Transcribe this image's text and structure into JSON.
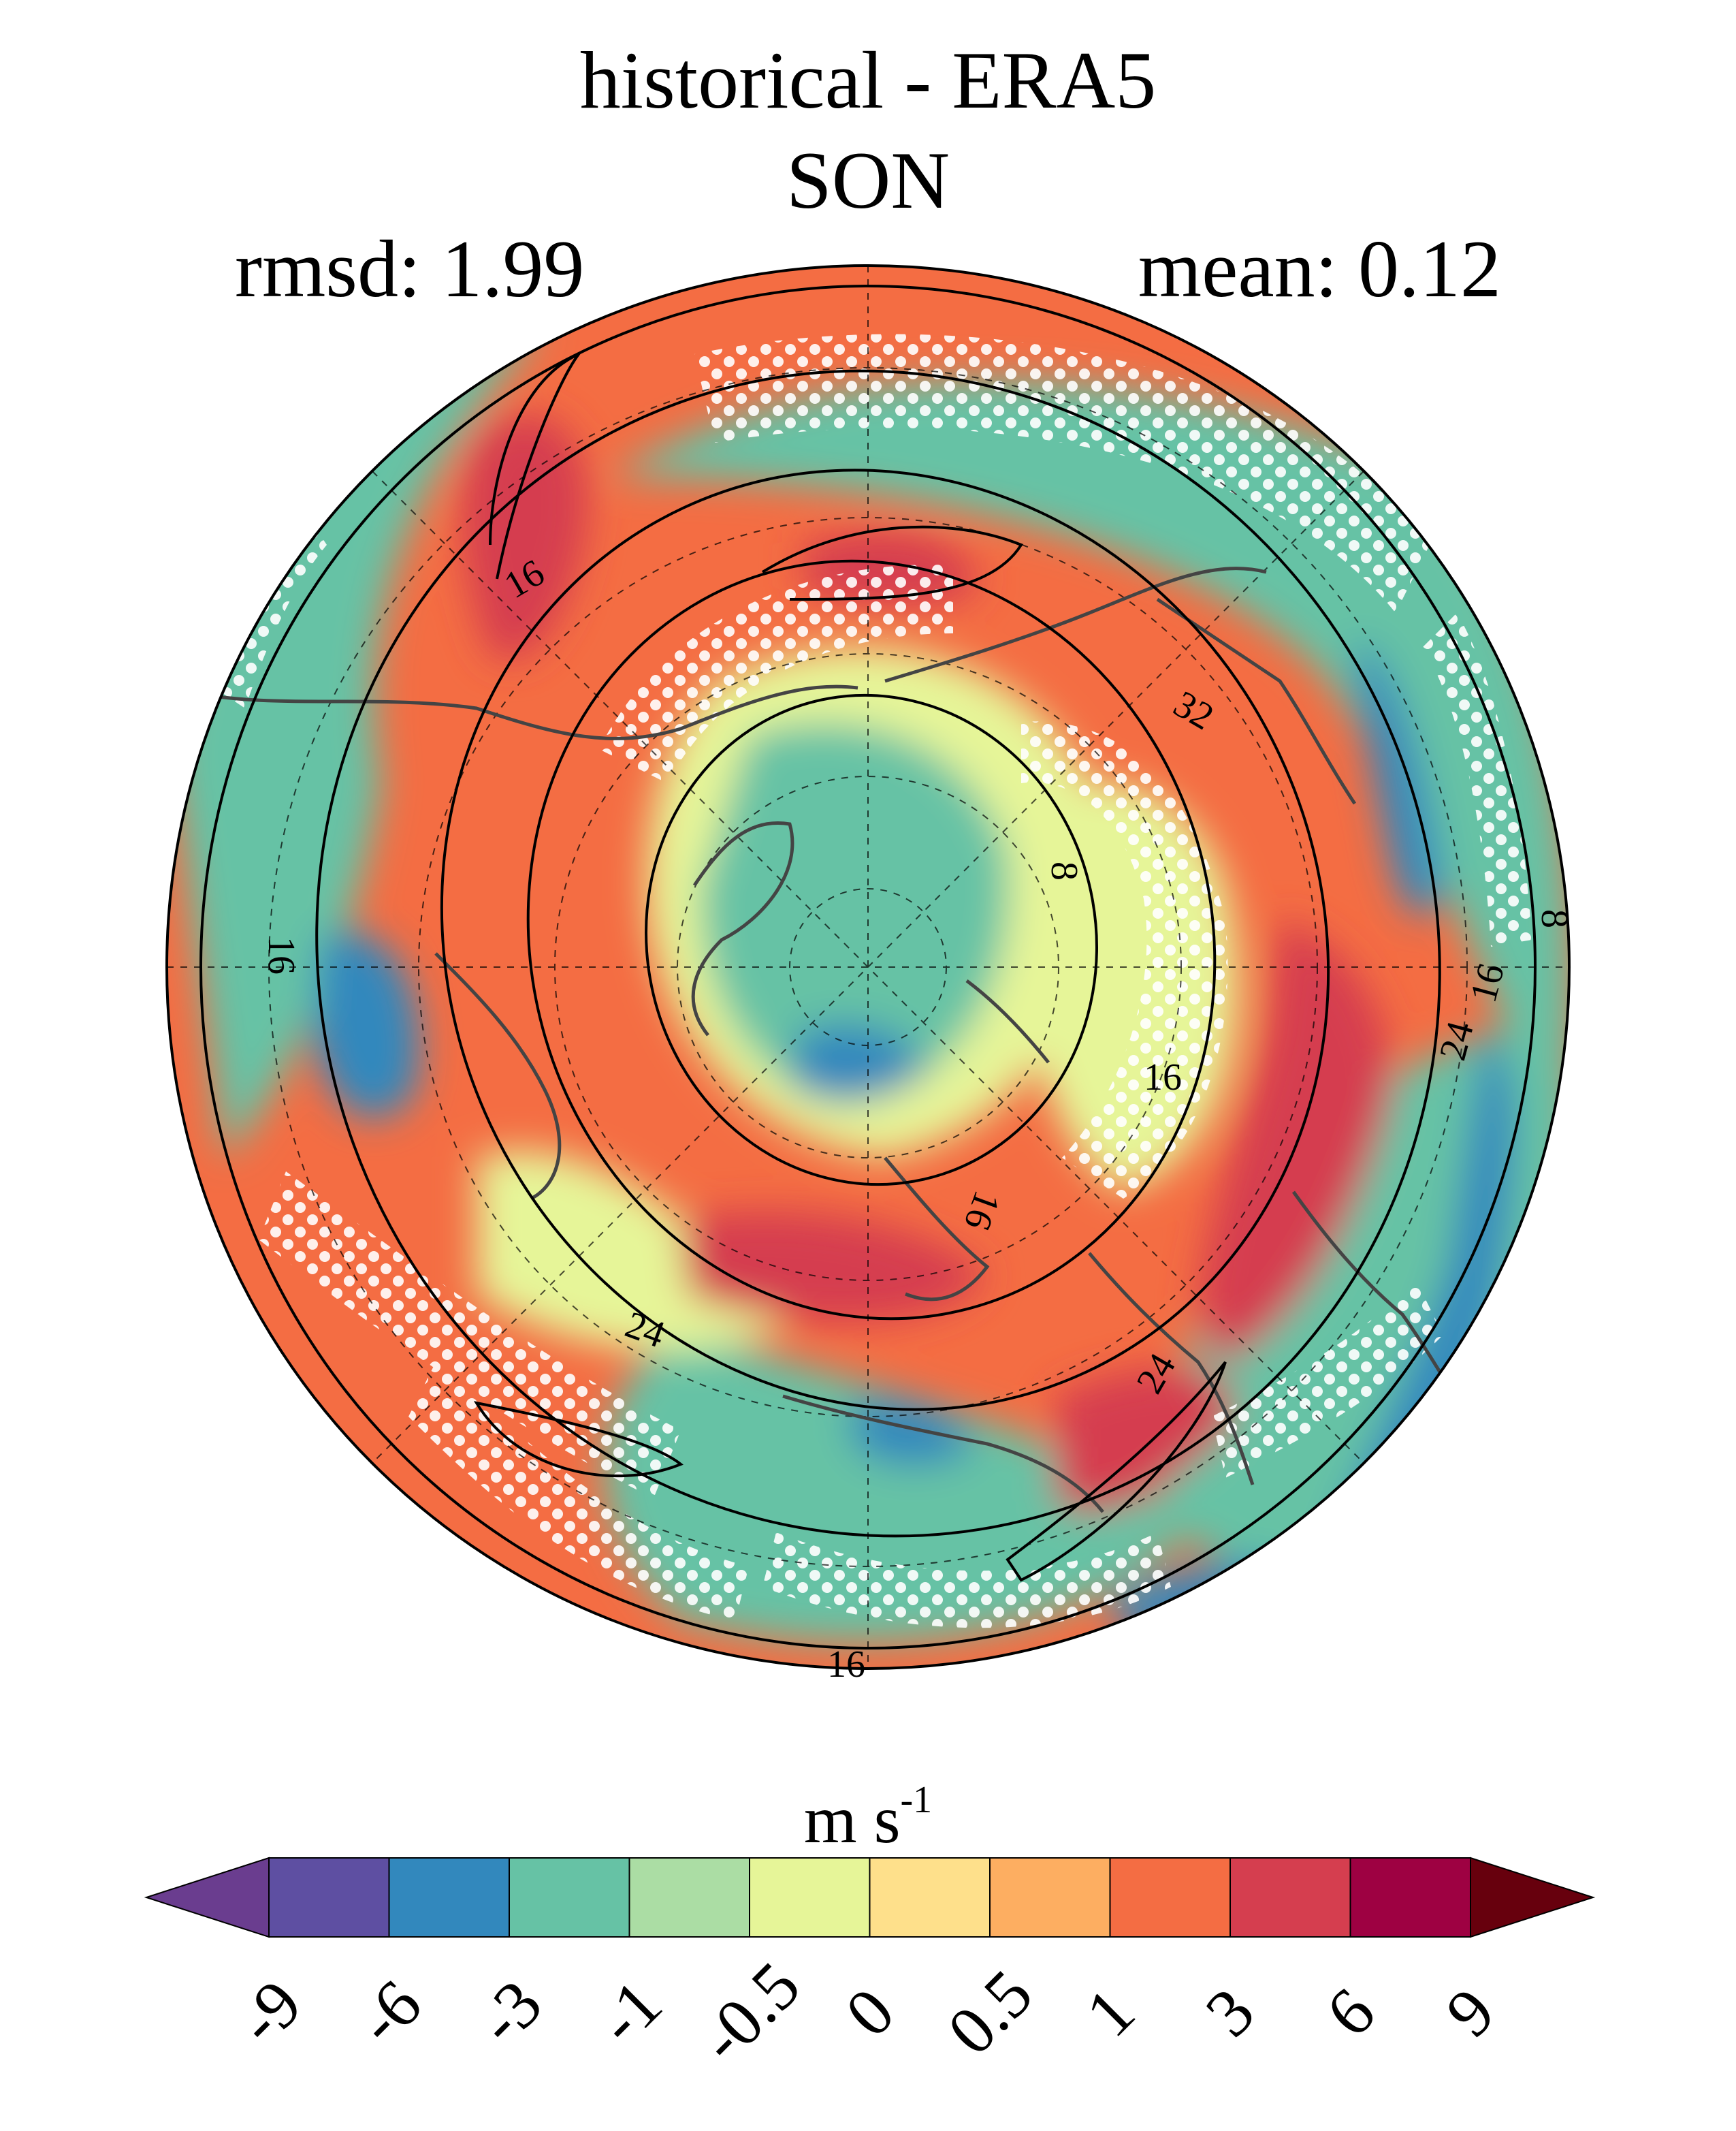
{
  "title": "historical - ERA5",
  "season": "SON",
  "stats": {
    "rmsd": "rmsd: 1.99",
    "mean": "mean: 0.12"
  },
  "colorbar": {
    "unit_base": "m s",
    "unit_exponent": "-1",
    "tick_labels": [
      "-9",
      "-6",
      "-3",
      "-1",
      "-0.5",
      "0",
      "0.5",
      "1",
      "3",
      "6",
      "9"
    ],
    "colors": [
      "#5e4fa2",
      "#3288bd",
      "#66c2a5",
      "#abdda4",
      "#e6f598",
      "#fee08b",
      "#fdae61",
      "#f46d43",
      "#d53e4f",
      "#9e0142"
    ],
    "extend_low_color": "#6a3d8f",
    "extend_high_color": "#67000d"
  },
  "map": {
    "projection": "north polar stereographic",
    "stippling": "white dots",
    "coastline_color": "#444444",
    "contour_labels": [
      "16",
      "32",
      "8",
      "8",
      "16",
      "24",
      "16",
      "16",
      "24",
      "24",
      "16",
      "16"
    ]
  }
}
